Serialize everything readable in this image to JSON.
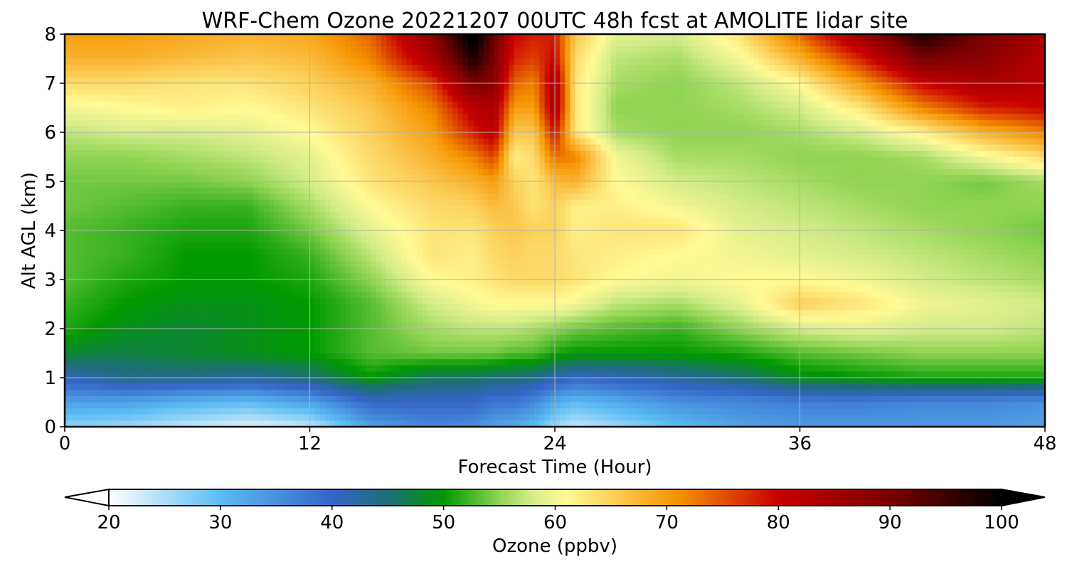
{
  "chart_data": {
    "type": "heatmap",
    "title": "WRF-Chem Ozone  20221207 00UTC 48h fcst at AMOLITE lidar site",
    "xlabel": "Forecast Time (Hour)",
    "ylabel": "Alt AGL (km)",
    "xlim": [
      0,
      48
    ],
    "ylim": [
      0,
      8
    ],
    "x_ticks": [
      0,
      12,
      24,
      36,
      48
    ],
    "y_ticks": [
      0,
      1,
      2,
      3,
      4,
      5,
      6,
      7,
      8
    ],
    "grid": true,
    "x": [
      0,
      3,
      6,
      9,
      12,
      15,
      18,
      20,
      21,
      22,
      23,
      24,
      25,
      27,
      30,
      33,
      36,
      39,
      42,
      45,
      48
    ],
    "y": [
      0,
      0.5,
      1,
      1.5,
      2,
      2.5,
      3,
      3.5,
      4,
      4.5,
      5,
      5.5,
      6,
      6.5,
      7,
      7.5,
      8
    ],
    "values": [
      [
        27,
        26,
        24,
        22,
        24,
        33,
        36,
        35,
        33,
        32,
        30,
        26,
        24,
        26,
        30,
        33,
        34,
        34,
        34,
        34,
        33
      ],
      [
        33,
        33,
        31,
        30,
        33,
        40,
        40,
        40,
        38,
        38,
        36,
        32,
        30,
        32,
        35,
        36,
        37,
        37,
        36,
        36,
        35
      ],
      [
        41,
        44,
        44,
        43,
        45,
        50,
        46,
        46,
        45,
        45,
        44,
        42,
        40,
        41,
        43,
        45,
        49,
        50,
        51,
        51,
        51
      ],
      [
        48,
        47,
        48,
        49,
        50,
        53,
        54,
        54,
        54,
        53,
        53,
        51,
        50,
        50,
        50,
        51,
        53,
        54,
        55,
        55,
        55
      ],
      [
        51,
        49,
        48,
        49,
        50,
        53,
        56,
        57,
        57,
        57,
        56,
        55,
        54,
        53,
        52,
        55,
        58,
        59,
        58,
        58,
        57
      ],
      [
        52,
        50,
        49,
        49,
        50,
        53,
        58,
        60,
        61,
        61,
        61,
        61,
        60,
        57,
        56,
        59,
        65,
        63,
        60,
        59,
        58
      ],
      [
        53,
        51,
        50,
        50,
        51,
        55,
        61,
        62,
        63,
        64,
        64,
        64,
        63,
        61,
        60,
        61,
        61,
        60,
        58,
        57,
        56
      ],
      [
        53,
        52,
        50,
        50,
        52,
        57,
        63,
        62,
        64,
        65,
        64,
        64,
        63,
        62,
        61,
        60,
        59,
        58,
        57,
        56,
        55
      ],
      [
        53,
        52,
        51,
        51,
        54,
        59,
        63,
        63,
        65,
        66,
        65,
        65,
        62,
        63,
        63,
        59,
        58,
        57,
        56,
        55,
        54
      ],
      [
        54,
        53,
        52,
        52,
        56,
        61,
        64,
        65,
        67,
        66,
        63,
        65,
        62,
        62,
        60,
        58,
        57,
        56,
        55,
        55,
        55
      ],
      [
        54,
        54,
        54,
        55,
        58,
        63,
        66,
        68,
        70,
        65,
        63,
        67,
        68,
        61,
        58,
        57,
        56,
        55,
        55,
        54,
        56
      ],
      [
        55,
        55,
        56,
        57,
        59,
        64,
        68,
        72,
        76,
        62,
        64,
        73,
        72,
        60,
        56,
        56,
        55,
        55,
        56,
        60,
        64
      ],
      [
        57,
        58,
        58,
        59,
        61,
        65,
        70,
        78,
        82,
        66,
        66,
        79,
        63,
        56,
        55,
        55,
        56,
        58,
        62,
        68,
        72
      ],
      [
        60,
        61,
        62,
        61,
        63,
        66,
        72,
        82,
        84,
        70,
        70,
        84,
        63,
        55,
        55,
        56,
        58,
        63,
        72,
        78,
        80
      ],
      [
        64,
        64,
        63,
        63,
        65,
        68,
        76,
        90,
        88,
        74,
        72,
        84,
        63,
        56,
        55,
        57,
        61,
        70,
        80,
        84,
        82
      ],
      [
        68,
        68,
        67,
        66,
        67,
        72,
        84,
        98,
        90,
        78,
        76,
        80,
        64,
        57,
        56,
        60,
        68,
        78,
        90,
        88,
        82
      ],
      [
        70,
        70,
        69,
        68,
        69,
        74,
        88,
        102,
        92,
        80,
        78,
        78,
        66,
        59,
        58,
        63,
        74,
        86,
        98,
        90,
        84
      ]
    ],
    "colorbar": {
      "label": "Ozone  (ppbv)",
      "min": 20,
      "max": 100,
      "ticks": [
        20,
        30,
        40,
        50,
        60,
        70,
        80,
        90,
        100
      ],
      "extend": "both",
      "stops": [
        {
          "v": 20,
          "c": "#ffffff"
        },
        {
          "v": 30,
          "c": "#5bbcf3"
        },
        {
          "v": 40,
          "c": "#3565c8"
        },
        {
          "v": 45,
          "c": "#1e6e78"
        },
        {
          "v": 50,
          "c": "#009900"
        },
        {
          "v": 55,
          "c": "#8fd454"
        },
        {
          "v": 58,
          "c": "#d6ec8a"
        },
        {
          "v": 61,
          "c": "#fffa96"
        },
        {
          "v": 66,
          "c": "#fbc64c"
        },
        {
          "v": 71,
          "c": "#f59300"
        },
        {
          "v": 80,
          "c": "#c80000"
        },
        {
          "v": 90,
          "c": "#7a0000"
        },
        {
          "v": 100,
          "c": "#000000"
        }
      ]
    }
  }
}
